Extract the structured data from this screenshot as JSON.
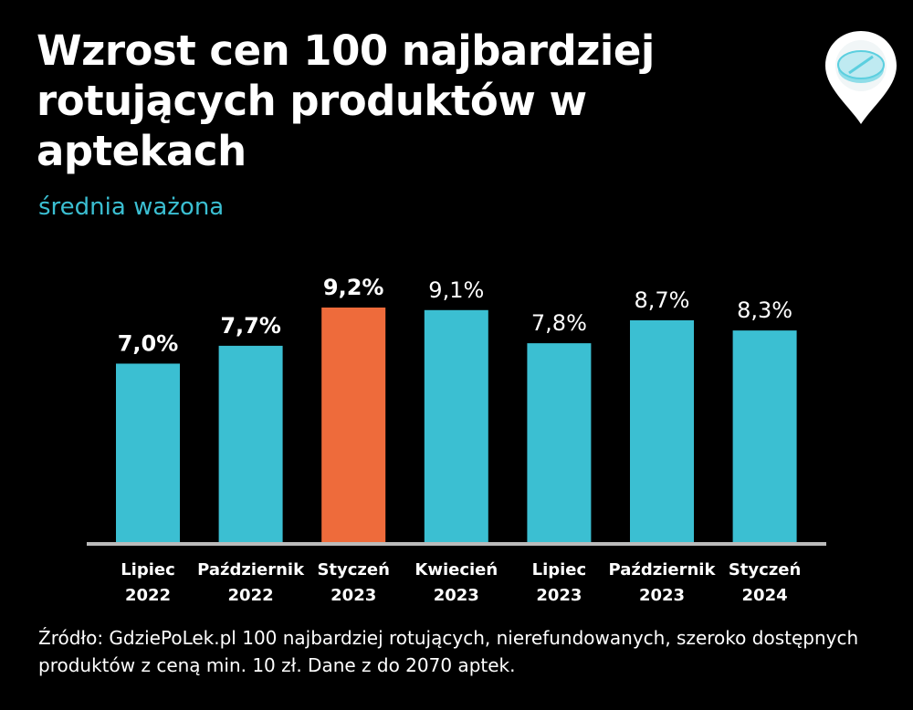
{
  "title": "Wzrost cen 100 najbardziej rotujących produktów w aptekach",
  "subtitle": "średnia ważona",
  "source": "Źródło: GdziePoLek.pl 100 najbardziej rotujących, nierefundowanych, szeroko dostępnych produktów z ceną min. 10 zł. Dane z do 2070 aptek.",
  "logo": {
    "icon": "pill-map-pin-icon"
  },
  "colors": {
    "bar": "#3bbfd2",
    "highlight": "#ee6b3b",
    "axis": "#bbbbbb",
    "text": "#ffffff",
    "accent": "#3bbfd2"
  },
  "chart_data": {
    "type": "bar",
    "categories": [
      [
        "Lipiec",
        "2022"
      ],
      [
        "Październik",
        "2022"
      ],
      [
        "Styczeń",
        "2023"
      ],
      [
        "Kwiecień",
        "2023"
      ],
      [
        "Lipiec",
        "2023"
      ],
      [
        "Październik",
        "2023"
      ],
      [
        "Styczeń",
        "2024"
      ]
    ],
    "values": [
      7.0,
      7.7,
      9.2,
      9.1,
      7.8,
      8.7,
      8.3
    ],
    "value_labels": [
      "7,0%",
      "7,7%",
      "9,2%",
      "9,1%",
      "7,8%",
      "8,7%",
      "8,3%"
    ],
    "bold_labels": [
      true,
      true,
      true,
      false,
      false,
      false,
      false
    ],
    "highlight_index": 2,
    "ylim": [
      0,
      9.2
    ],
    "grid": false,
    "legend": "none"
  }
}
